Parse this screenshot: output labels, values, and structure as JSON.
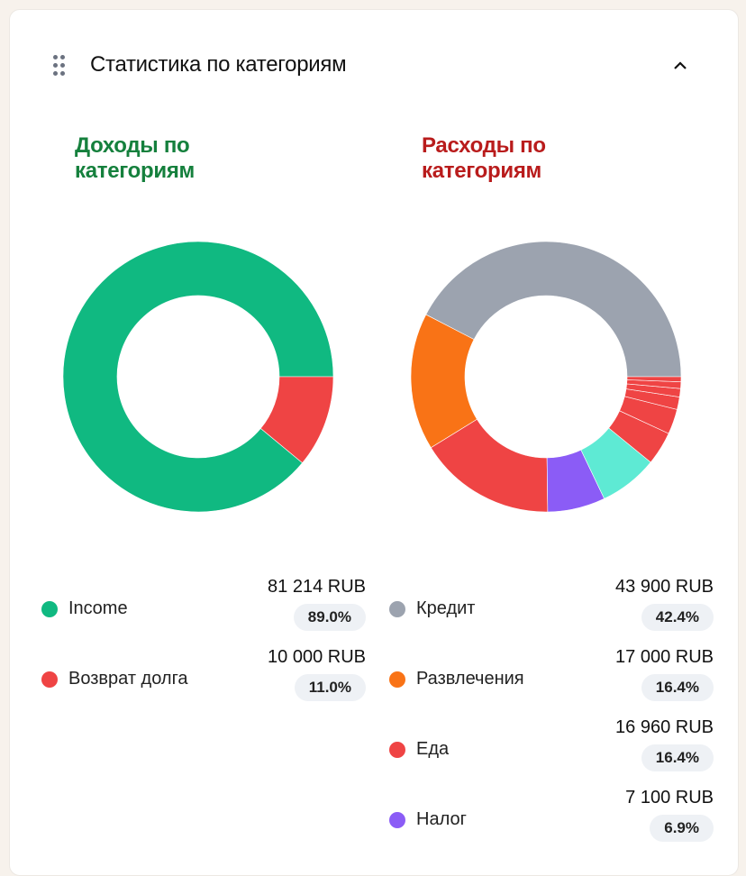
{
  "header": {
    "title": "Статистика по категориям",
    "drag_icon": "drag-handle-icon",
    "collapse_icon": "chevron-up-icon"
  },
  "income": {
    "title": "Доходы по категориям",
    "title_color": "#15803d"
  },
  "expenses": {
    "title": "Расходы по категориям",
    "title_color": "#b91c1c"
  },
  "chart_data": [
    {
      "type": "pie",
      "variant": "donut",
      "start": "3 o'clock, counterclockwise",
      "labels": [
        "Income",
        "Возврат долга"
      ],
      "values": [
        81214,
        10000
      ],
      "percents": [
        89.0,
        11.0
      ],
      "colors": [
        "#10b981",
        "#ef4444"
      ]
    },
    {
      "type": "pie",
      "variant": "donut",
      "start": "3 o'clock, counterclockwise",
      "labels": [
        "Кредит",
        "Развлечения",
        "Еда",
        "Налог",
        "",
        "",
        "",
        "",
        "",
        "",
        ""
      ],
      "values": [
        43900,
        17000,
        16960,
        7100,
        null,
        null,
        null,
        null,
        null,
        null,
        null
      ],
      "percents": [
        42.4,
        16.4,
        16.4,
        6.9,
        7.0,
        4.0,
        3.0,
        1.5,
        1.0,
        0.8,
        0.6
      ],
      "colors": [
        "#9ca3af",
        "#f97316",
        "#ef4444",
        "#8b5cf6",
        "#5eead4",
        "#ef4444",
        "#ef4444",
        "#ef4444",
        "#ef4444",
        "#ef4444",
        "#ef4444"
      ]
    }
  ],
  "income_legend": [
    {
      "label": "Income",
      "amount": "81 214 RUB",
      "percent": "89.0%",
      "color": "#10b981"
    },
    {
      "label": "Возврат долга",
      "amount": "10 000 RUB",
      "percent": "11.0%",
      "color": "#ef4444"
    }
  ],
  "expense_legend": [
    {
      "label": "Кредит",
      "amount": "43 900 RUB",
      "percent": "42.4%",
      "color": "#9ca3af"
    },
    {
      "label": "Развлечения",
      "amount": "17 000 RUB",
      "percent": "16.4%",
      "color": "#f97316"
    },
    {
      "label": "Еда",
      "amount": "16 960 RUB",
      "percent": "16.4%",
      "color": "#ef4444"
    },
    {
      "label": "Налог",
      "amount": "7 100 RUB",
      "percent": "6.9%",
      "color": "#8b5cf6"
    }
  ]
}
